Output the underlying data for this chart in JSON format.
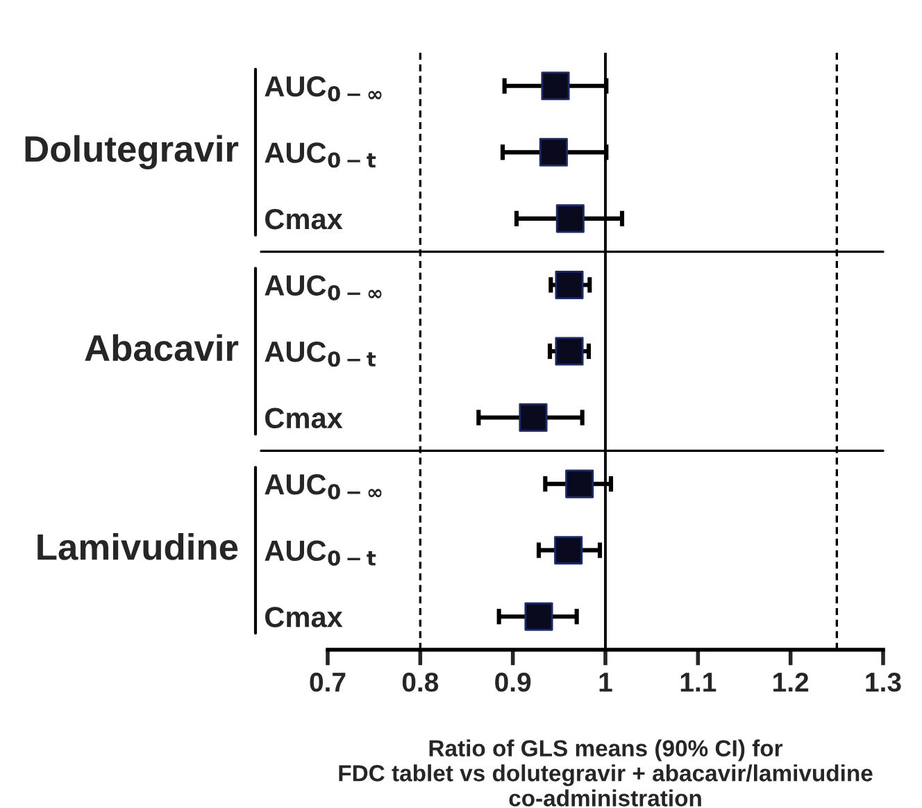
{
  "chart_data": {
    "type": "scatter",
    "orientation": "horizontal",
    "xlabel": "Ratio of GLS means (90% CI) for\nFDC tablet vs dolutegravir + abacavir/lamivudine\nco-administration",
    "annotations": [
      "Dolutegravir",
      "Abacavir",
      "Lamivudine"
    ],
    "categories": [
      "AUC$_{0−∞}$",
      "AUC$_{0−t}$",
      "Cmax",
      "AUC$_{0−∞}$",
      "AUC$_{0−t}$",
      "Cmax",
      "AUC$_{0−∞}$",
      "AUC$_{0−t}$",
      "Cmax"
    ],
    "values": [
      0.946,
      0.944,
      0.962,
      0.961,
      0.961,
      0.922,
      0.972,
      0.96,
      0.928
    ],
    "errors": [
      [
        0.891,
        1.001
      ],
      [
        0.889,
        1.001
      ],
      [
        0.904,
        1.018
      ],
      [
        0.941,
        0.983
      ],
      [
        0.94,
        0.982
      ],
      [
        0.863,
        0.975
      ],
      [
        0.935,
        1.006
      ],
      [
        0.928,
        0.994
      ],
      [
        0.885,
        0.969
      ]
    ],
    "color": "#0a0a1e",
    "marker": "square",
    "xlim": [
      0.7,
      1.3
    ],
    "xticks": [
      0.7,
      0.8,
      0.9,
      1,
      1.1,
      1.2,
      1.3
    ],
    "ref_lines": [
      {
        "axis": "x",
        "value": 0.8,
        "line_style": "dashed",
        "color": "#000000"
      },
      {
        "axis": "x",
        "value": 1,
        "line_style": "solid",
        "color": "#000000"
      },
      {
        "axis": "x",
        "value": 1.25,
        "line_style": "dashed",
        "color": "#000000"
      }
    ]
  }
}
